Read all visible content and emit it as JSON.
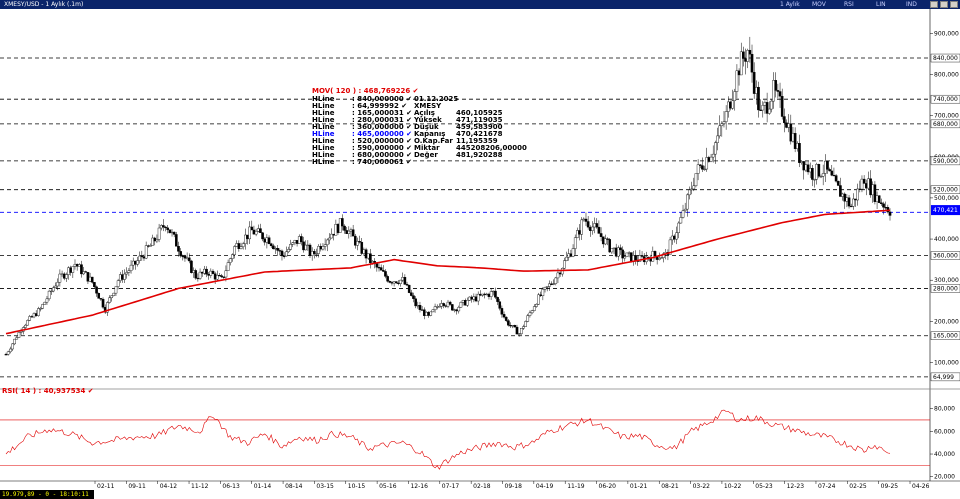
{
  "window": {
    "title": "XMESY/USD - 1 Aylık (.1m)",
    "header_cols": [
      "1 Aylık",
      "MOV",
      "RSI",
      "LIN",
      "IND"
    ],
    "colors": {
      "titlebar": "#0a246a",
      "mov": "#e00000",
      "rsi": "#e00000",
      "hline": "#000000",
      "selected_hline": "#0000ff"
    }
  },
  "status_bar": "19.979,89 - 0 - 18:10:11",
  "legend": {
    "mov_label": "MOV( 120 ) : 468,769226",
    "rows": [
      {
        "label": "HLine",
        "value": ": 840,000000",
        "highlight": false
      },
      {
        "label": "HLine",
        "value": ": 64,999992",
        "highlight": false
      },
      {
        "label": "HLine",
        "value": ": 165,000031",
        "highlight": false
      },
      {
        "label": "HLine",
        "value": ": 280,000031",
        "highlight": false
      },
      {
        "label": "HLine",
        "value": ": 360,000000",
        "highlight": false
      },
      {
        "label": "HLine",
        "value": ": 465,000000",
        "highlight": true
      },
      {
        "label": "HLine",
        "value": ": 520,000000",
        "highlight": false
      },
      {
        "label": "HLine",
        "value": ": 590,000000",
        "highlight": false
      },
      {
        "label": "HLine",
        "value": ": 680,000000",
        "highlight": false
      },
      {
        "label": "HLine",
        "value": ": 740,000061",
        "highlight": false
      }
    ],
    "info": [
      {
        "label": "01.12.2025",
        "value": ""
      },
      {
        "label": "XMESY",
        "value": ""
      },
      {
        "label": "Açılış",
        "value": "460,105925"
      },
      {
        "label": "Yüksek",
        "value": "471,119035"
      },
      {
        "label": "Düşük",
        "value": "459,583900"
      },
      {
        "label": "Kapanış",
        "value": "470,421678"
      },
      {
        "label": "O.Kap.Far",
        "value": "11,195359"
      },
      {
        "label": "Miktar",
        "value": "445208206,00000"
      },
      {
        "label": "Değer",
        "value": "481,920288"
      }
    ]
  },
  "rsi_legend": "RSI( 14 ) : 40,937534",
  "chart_data": {
    "type": "candlestick",
    "price_panel": {
      "ylim": [
        55,
        930
      ],
      "y_ticks": [
        {
          "v": 900,
          "t": "900,000"
        },
        {
          "v": 800,
          "t": "800,000"
        },
        {
          "v": 700,
          "t": "700,000"
        },
        {
          "v": 600,
          "t": "600,000"
        },
        {
          "v": 500,
          "t": "500,000"
        },
        {
          "v": 400,
          "t": "400,000"
        },
        {
          "v": 300,
          "t": "300,000"
        },
        {
          "v": 200,
          "t": "200,000"
        },
        {
          "v": 100,
          "t": "100,000"
        }
      ],
      "hlines": [
        {
          "v": 840,
          "t": "840,000",
          "selected": false
        },
        {
          "v": 740,
          "t": "740,000",
          "selected": false
        },
        {
          "v": 680,
          "t": "680,000",
          "selected": false
        },
        {
          "v": 590,
          "t": "590,000",
          "selected": false
        },
        {
          "v": 520,
          "t": "520,000",
          "selected": false
        },
        {
          "v": 465,
          "t": "",
          "selected": true
        },
        {
          "v": 360,
          "t": "360,000",
          "selected": false
        },
        {
          "v": 280,
          "t": "280,000",
          "selected": false
        },
        {
          "v": 165,
          "t": "165,000",
          "selected": false
        },
        {
          "v": 64.999992,
          "t": "64,999",
          "selected": false
        }
      ],
      "last_price": {
        "v": 470.42,
        "t": "470,421"
      },
      "anchors": [
        [
          0,
          120
        ],
        [
          8,
          190
        ],
        [
          16,
          230
        ],
        [
          24,
          300
        ],
        [
          32,
          340
        ],
        [
          40,
          295
        ],
        [
          46,
          230
        ],
        [
          52,
          300
        ],
        [
          60,
          340
        ],
        [
          68,
          390
        ],
        [
          74,
          440
        ],
        [
          80,
          380
        ],
        [
          88,
          310
        ],
        [
          94,
          320
        ],
        [
          100,
          300
        ],
        [
          106,
          380
        ],
        [
          114,
          420
        ],
        [
          122,
          400
        ],
        [
          128,
          360
        ],
        [
          136,
          400
        ],
        [
          142,
          360
        ],
        [
          148,
          400
        ],
        [
          156,
          440
        ],
        [
          164,
          380
        ],
        [
          170,
          340
        ],
        [
          178,
          300
        ],
        [
          184,
          300
        ],
        [
          190,
          240
        ],
        [
          196,
          210
        ],
        [
          202,
          250
        ],
        [
          208,
          230
        ],
        [
          214,
          250
        ],
        [
          220,
          260
        ],
        [
          226,
          270
        ],
        [
          232,
          200
        ],
        [
          238,
          170
        ],
        [
          246,
          250
        ],
        [
          254,
          300
        ],
        [
          262,
          370
        ],
        [
          268,
          450
        ],
        [
          274,
          420
        ],
        [
          280,
          380
        ],
        [
          286,
          360
        ],
        [
          294,
          350
        ],
        [
          300,
          360
        ],
        [
          306,
          360
        ],
        [
          314,
          460
        ],
        [
          320,
          560
        ],
        [
          328,
          620
        ],
        [
          334,
          700
        ],
        [
          340,
          820
        ],
        [
          344,
          860
        ],
        [
          350,
          700
        ],
        [
          356,
          760
        ],
        [
          362,
          690
        ],
        [
          368,
          600
        ],
        [
          374,
          560
        ],
        [
          380,
          570
        ],
        [
          386,
          520
        ],
        [
          392,
          480
        ],
        [
          398,
          550
        ],
        [
          404,
          500
        ],
        [
          410,
          470
        ]
      ],
      "mov": [
        [
          0,
          170
        ],
        [
          40,
          215
        ],
        [
          80,
          280
        ],
        [
          120,
          320
        ],
        [
          160,
          330
        ],
        [
          180,
          350
        ],
        [
          200,
          335
        ],
        [
          220,
          330
        ],
        [
          240,
          322
        ],
        [
          270,
          325
        ],
        [
          300,
          355
        ],
        [
          330,
          400
        ],
        [
          360,
          440
        ],
        [
          380,
          460
        ],
        [
          410,
          470
        ]
      ]
    },
    "rsi_panel": {
      "label": "RSI( 14 )",
      "ylim": [
        18,
        92
      ],
      "y_ticks": [
        {
          "v": 80,
          "t": "80,000"
        },
        {
          "v": 60,
          "t": "60,000"
        },
        {
          "v": 40,
          "t": "40,000"
        },
        {
          "v": 20,
          "t": "20,000"
        }
      ],
      "bands": [
        70,
        30
      ],
      "anchors": [
        [
          0,
          40
        ],
        [
          10,
          55
        ],
        [
          20,
          62
        ],
        [
          30,
          58
        ],
        [
          40,
          50
        ],
        [
          50,
          52
        ],
        [
          60,
          55
        ],
        [
          70,
          56
        ],
        [
          80,
          65
        ],
        [
          90,
          60
        ],
        [
          96,
          75
        ],
        [
          104,
          55
        ],
        [
          112,
          50
        ],
        [
          120,
          58
        ],
        [
          128,
          47
        ],
        [
          136,
          55
        ],
        [
          144,
          52
        ],
        [
          152,
          58
        ],
        [
          160,
          55
        ],
        [
          168,
          45
        ],
        [
          176,
          48
        ],
        [
          184,
          50
        ],
        [
          192,
          42
        ],
        [
          200,
          28
        ],
        [
          206,
          36
        ],
        [
          212,
          42
        ],
        [
          220,
          46
        ],
        [
          228,
          50
        ],
        [
          236,
          46
        ],
        [
          244,
          50
        ],
        [
          252,
          60
        ],
        [
          260,
          65
        ],
        [
          270,
          70
        ],
        [
          278,
          62
        ],
        [
          286,
          55
        ],
        [
          294,
          56
        ],
        [
          302,
          48
        ],
        [
          310,
          45
        ],
        [
          318,
          60
        ],
        [
          326,
          68
        ],
        [
          334,
          78
        ],
        [
          340,
          70
        ],
        [
          348,
          72
        ],
        [
          356,
          66
        ],
        [
          364,
          62
        ],
        [
          372,
          58
        ],
        [
          380,
          55
        ],
        [
          388,
          50
        ],
        [
          394,
          46
        ],
        [
          398,
          43
        ],
        [
          402,
          48
        ],
        [
          406,
          45
        ],
        [
          410,
          41
        ]
      ]
    },
    "x_ticks": [
      "02-11",
      "09-11",
      "04-12",
      "11-12",
      "06-13",
      "01-14",
      "08-14",
      "03-15",
      "10-15",
      "05-16",
      "12-16",
      "07-17",
      "02-18",
      "09-18",
      "04-19",
      "11-19",
      "06-20",
      "01-21",
      "08-21",
      "03-22",
      "10-22",
      "05-23",
      "12-23",
      "07-24",
      "02-25",
      "09-25",
      "04-26"
    ],
    "num_bars": 411
  }
}
